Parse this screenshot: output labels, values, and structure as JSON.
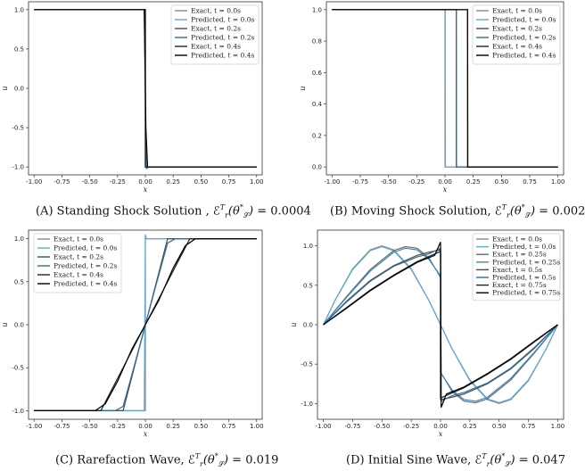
{
  "chart_data": [
    {
      "type": "line",
      "panel": "A",
      "title": "",
      "caption": "(A) Standing Shock Solution , ℰ",
      "caption_metric": "0.0004",
      "xlabel": "x",
      "ylabel": "u",
      "xlim": [
        -1.05,
        1.05
      ],
      "ylim": [
        -1.1,
        1.1
      ],
      "xticks": [
        "-1.00",
        "-0.75",
        "-0.50",
        "-0.25",
        "0.00",
        "0.25",
        "0.50",
        "0.75",
        "1.00"
      ],
      "yticks": [
        "-1.0",
        "-0.5",
        "0.0",
        "0.5",
        "1.0"
      ],
      "ytick_values": [
        -1.0,
        -0.5,
        0.0,
        0.5,
        1.0
      ],
      "legend_placement": "top-right",
      "series": [
        {
          "name": "Exact, t = 0.0s",
          "color": "#8a8a8a",
          "x": [
            -1,
            0,
            0,
            1
          ],
          "y": [
            1,
            1,
            -1,
            -1
          ]
        },
        {
          "name": "Predicted, t = 0.0s",
          "color": "#5aa8d8",
          "x": [
            -1,
            -0.003,
            0.003,
            1
          ],
          "y": [
            1,
            1,
            -1,
            -1
          ]
        },
        {
          "name": "Exact, t = 0.2s",
          "color": "#4a4a4a",
          "x": [
            -1,
            0,
            0,
            1
          ],
          "y": [
            1,
            1,
            -1,
            -1
          ]
        },
        {
          "name": "Predicted, t = 0.2s",
          "color": "#2e6f9e",
          "x": [
            -1,
            -0.01,
            0,
            0.01,
            0.03,
            1
          ],
          "y": [
            1,
            1,
            -0.2,
            -1.02,
            -1,
            -1
          ]
        },
        {
          "name": "Exact, t = 0.4s",
          "color": "#222222",
          "x": [
            -1,
            0,
            0,
            1
          ],
          "y": [
            1,
            1,
            -1,
            -1
          ]
        },
        {
          "name": "Predicted, t = 0.4s",
          "color": "#000000",
          "x": [
            -1,
            -0.01,
            0.005,
            0.02,
            1
          ],
          "y": [
            1,
            1,
            -0.5,
            -1,
            -1
          ]
        }
      ]
    },
    {
      "type": "line",
      "panel": "B",
      "title": "",
      "caption": "(B) Moving Shock Solution, ℰ",
      "caption_metric": "0.002",
      "xlabel": "x",
      "ylabel": "u",
      "xlim": [
        -1.05,
        1.05
      ],
      "ylim": [
        -0.05,
        1.05
      ],
      "xticks": [
        "-1.00",
        "-0.75",
        "-0.50",
        "-0.25",
        "0.00",
        "0.25",
        "0.50",
        "0.75",
        "1.00"
      ],
      "yticks": [
        "0.0",
        "0.2",
        "0.4",
        "0.6",
        "0.8",
        "1.0"
      ],
      "ytick_values": [
        0.0,
        0.2,
        0.4,
        0.6,
        0.8,
        1.0
      ],
      "legend_placement": "top-right",
      "series": [
        {
          "name": "Exact, t = 0.0s",
          "color": "#8a8a8a",
          "x": [
            -1,
            0,
            0,
            1
          ],
          "y": [
            1,
            1,
            0,
            0
          ]
        },
        {
          "name": "Predicted, t = 0.0s",
          "color": "#5aa8d8",
          "x": [
            -1,
            0.002,
            0.004,
            1
          ],
          "y": [
            1,
            1,
            0,
            0
          ]
        },
        {
          "name": "Exact, t = 0.2s",
          "color": "#4a4a4a",
          "x": [
            -1,
            0.1,
            0.1,
            1
          ],
          "y": [
            1,
            1,
            0,
            0
          ]
        },
        {
          "name": "Predicted, t = 0.2s",
          "color": "#2e6f9e",
          "x": [
            -1,
            0.1,
            0.102,
            1
          ],
          "y": [
            1,
            1,
            0,
            0
          ]
        },
        {
          "name": "Exact, t = 0.4s",
          "color": "#222222",
          "x": [
            -1,
            0.2,
            0.2,
            1
          ],
          "y": [
            1,
            1,
            0,
            0
          ]
        },
        {
          "name": "Predicted, t = 0.4s",
          "color": "#000000",
          "x": [
            -1,
            0.2,
            0.202,
            1
          ],
          "y": [
            1,
            1,
            0,
            0
          ]
        }
      ]
    },
    {
      "type": "line",
      "panel": "C",
      "title": "",
      "caption": "(C) Rarefaction Wave, ℰ",
      "caption_metric": "0.019",
      "xlabel": "x",
      "ylabel": "u",
      "xlim": [
        -1.05,
        1.05
      ],
      "ylim": [
        -1.1,
        1.1
      ],
      "xticks": [
        "-1.00",
        "-0.75",
        "-0.50",
        "-0.25",
        "0.00",
        "0.25",
        "0.50",
        "0.75",
        "1.00"
      ],
      "yticks": [
        "-1.0",
        "-0.5",
        "0.0",
        "0.5",
        "1.0"
      ],
      "ytick_values": [
        -1.0,
        -0.5,
        0.0,
        0.5,
        1.0
      ],
      "legend_placement": "top-left",
      "series": [
        {
          "name": "Exact, t = 0.0s",
          "color": "#8a8a8a",
          "x": [
            -1,
            0,
            0,
            1
          ],
          "y": [
            -1,
            -1,
            1,
            1
          ]
        },
        {
          "name": "Predicted, t = 0.0s",
          "color": "#5aa8d8",
          "x": [
            -1,
            -0.01,
            0,
            0.01,
            1
          ],
          "y": [
            -1,
            -1,
            1.05,
            1,
            1
          ]
        },
        {
          "name": "Exact, t = 0.2s",
          "color": "#4a4a4a",
          "x": [
            -1,
            -0.2,
            0.2,
            1
          ],
          "y": [
            -1,
            -1,
            1,
            1
          ]
        },
        {
          "name": "Predicted, t = 0.2s",
          "color": "#2e6f9e",
          "x": [
            -1,
            -0.27,
            -0.2,
            -0.1,
            0,
            0.1,
            0.2,
            0.27,
            1
          ],
          "y": [
            -1,
            -1,
            -0.95,
            -0.48,
            0,
            0.48,
            0.95,
            1,
            1
          ]
        },
        {
          "name": "Exact, t = 0.4s",
          "color": "#222222",
          "x": [
            -1,
            -0.4,
            0.4,
            1
          ],
          "y": [
            -1,
            -1,
            1,
            1
          ]
        },
        {
          "name": "Predicted, t = 0.4s",
          "color": "#000000",
          "x": [
            -1,
            -0.45,
            -0.36,
            -0.25,
            -0.12,
            0,
            0.12,
            0.25,
            0.36,
            0.45,
            1
          ],
          "y": [
            -1,
            -1,
            -0.92,
            -0.66,
            -0.28,
            0,
            0.28,
            0.66,
            0.92,
            1,
            1
          ]
        }
      ]
    },
    {
      "type": "line",
      "panel": "D",
      "title": "",
      "caption": "(D) Initial Sine Wave, ℰ",
      "caption_metric": "0.047",
      "xlabel": "x",
      "ylabel": "u",
      "xlim": [
        -1.05,
        1.05
      ],
      "ylim": [
        -1.2,
        1.2
      ],
      "xticks": [
        "-1.00",
        "-0.75",
        "-0.50",
        "-0.25",
        "0.00",
        "0.25",
        "0.50",
        "0.75",
        "1.00"
      ],
      "yticks": [
        "-1.0",
        "-0.5",
        "0.0",
        "0.5",
        "1.0"
      ],
      "ytick_values": [
        -1.0,
        -0.5,
        0.0,
        0.5,
        1.0
      ],
      "legend_placement": "top-right",
      "series": [
        {
          "name": "Exact, t = 0.0s",
          "color": "#8a8a8a",
          "x": [
            -1,
            -0.9,
            -0.75,
            -0.6,
            -0.5,
            -0.4,
            -0.25,
            -0.1,
            0,
            0.1,
            0.25,
            0.4,
            0.5,
            0.6,
            0.75,
            0.9,
            1
          ],
          "y": [
            0,
            0.31,
            0.71,
            0.95,
            1,
            0.95,
            0.71,
            0.31,
            0,
            -0.31,
            -0.71,
            -0.95,
            -1,
            -0.95,
            -0.71,
            -0.31,
            0
          ]
        },
        {
          "name": "Predicted, t = 0.0s",
          "color": "#5aa8d8",
          "x": [
            -1,
            -0.9,
            -0.75,
            -0.6,
            -0.5,
            -0.4,
            -0.25,
            -0.1,
            0,
            0.1,
            0.25,
            0.4,
            0.5,
            0.6,
            0.75,
            0.9,
            1
          ],
          "y": [
            0,
            0.31,
            0.7,
            0.94,
            0.99,
            0.94,
            0.7,
            0.31,
            0,
            -0.31,
            -0.7,
            -0.94,
            -0.99,
            -0.94,
            -0.7,
            -0.31,
            0
          ]
        },
        {
          "name": "Exact, t = 0.25s",
          "color": "#6a6a6a",
          "x": [
            -1,
            -0.8,
            -0.6,
            -0.4,
            -0.3,
            -0.2,
            -0.1,
            0,
            0,
            0.1,
            0.2,
            0.3,
            0.4,
            0.6,
            0.8,
            1
          ],
          "y": [
            0,
            0.36,
            0.7,
            0.94,
            0.99,
            0.97,
            0.85,
            0.6,
            -0.6,
            -0.85,
            -0.97,
            -0.99,
            -0.94,
            -0.7,
            -0.36,
            0
          ]
        },
        {
          "name": "Predicted, t = 0.25s",
          "color": "#3b88bf",
          "x": [
            -1,
            -0.8,
            -0.6,
            -0.4,
            -0.3,
            -0.2,
            -0.1,
            0,
            0.005,
            0.1,
            0.2,
            0.3,
            0.4,
            0.6,
            0.8,
            1
          ],
          "y": [
            0,
            0.35,
            0.68,
            0.92,
            0.97,
            0.95,
            0.83,
            0.62,
            -0.62,
            -0.83,
            -0.95,
            -0.97,
            -0.92,
            -0.68,
            -0.35,
            0
          ]
        },
        {
          "name": "Exact, t = 0.5s",
          "color": "#4a4a4a",
          "x": [
            -1,
            -0.8,
            -0.6,
            -0.4,
            -0.2,
            -0.1,
            0,
            0,
            0.1,
            0.2,
            0.4,
            0.6,
            0.8,
            1
          ],
          "y": [
            0,
            0.3,
            0.56,
            0.75,
            0.88,
            0.92,
            0.95,
            -0.95,
            -0.92,
            -0.88,
            -0.75,
            -0.56,
            -0.3,
            0
          ]
        },
        {
          "name": "Predicted, t = 0.5s",
          "color": "#2e6f9e",
          "x": [
            -1,
            -0.8,
            -0.6,
            -0.4,
            -0.2,
            -0.1,
            0,
            0.005,
            0.1,
            0.2,
            0.4,
            0.6,
            0.8,
            1
          ],
          "y": [
            0,
            0.29,
            0.55,
            0.74,
            0.86,
            0.9,
            0.97,
            -0.97,
            -0.9,
            -0.86,
            -0.74,
            -0.55,
            -0.29,
            0
          ]
        },
        {
          "name": "Exact, t = 0.75s",
          "color": "#222222",
          "x": [
            -1,
            -0.8,
            -0.6,
            -0.4,
            -0.2,
            0,
            0,
            0.2,
            0.4,
            0.6,
            0.8,
            1
          ],
          "y": [
            0,
            0.22,
            0.44,
            0.63,
            0.8,
            0.93,
            -0.93,
            -0.8,
            -0.63,
            -0.44,
            -0.22,
            0
          ]
        },
        {
          "name": "Predicted, t = 0.75s",
          "color": "#000000",
          "x": [
            -1,
            -0.8,
            -0.6,
            -0.4,
            -0.2,
            -0.05,
            0,
            0.005,
            0.05,
            0.2,
            0.4,
            0.6,
            0.8,
            1
          ],
          "y": [
            0,
            0.21,
            0.43,
            0.62,
            0.79,
            0.88,
            1.05,
            -1.05,
            -0.88,
            -0.79,
            -0.62,
            -0.43,
            -0.21,
            0
          ]
        }
      ]
    }
  ]
}
